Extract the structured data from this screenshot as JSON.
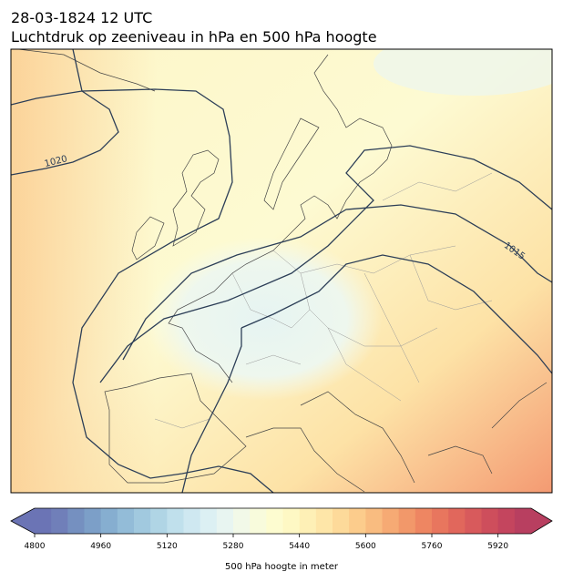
{
  "header": {
    "title": "28-03-1824 12 UTC",
    "subtitle": "Luchtdruk op zeeniveau in hPa en 500 hPa hoogte"
  },
  "map": {
    "isobar_labels": [
      "1020",
      "1015"
    ]
  },
  "colorbar": {
    "label": "500 hPa hoogte in meter",
    "lim": [
      4800,
      6000
    ],
    "ticks": [
      4800,
      4960,
      5120,
      5280,
      5440,
      5600,
      5760,
      5920
    ],
    "colors": [
      "#6b74b5",
      "#707fb9",
      "#7590c0",
      "#7c9fc8",
      "#86aed0",
      "#93bcd8",
      "#a1c9df",
      "#b0d5e5",
      "#c0e0ec",
      "#cfe8f1",
      "#dcf0f3",
      "#e8f5f1",
      "#f2f9e8",
      "#f8fbdc",
      "#fdfcd0",
      "#fef8c4",
      "#fef0b6",
      "#fee6a8",
      "#fdda9a",
      "#fccc8c",
      "#f9bc80",
      "#f6aa74",
      "#f2986a",
      "#ee8662",
      "#e8765e",
      "#e1675c",
      "#d85a5c",
      "#ce4e5c",
      "#c4455e",
      "#b83f60"
    ]
  }
}
